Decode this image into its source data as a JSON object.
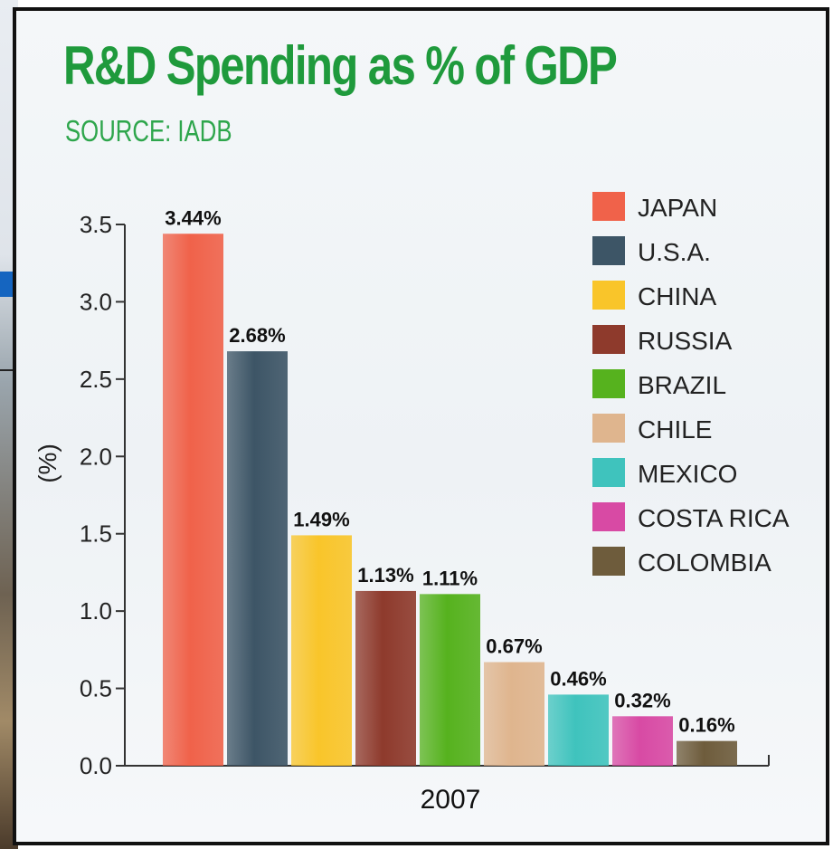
{
  "chart_data": {
    "type": "bar",
    "title": "R&D Spending as % of GDP",
    "subtitle": "SOURCE: IADB",
    "ylabel": "(%)",
    "categories": [
      "2007"
    ],
    "ylim": [
      0,
      3.5
    ],
    "yticks": [
      "0.0",
      "0.5",
      "1.0",
      "1.5",
      "2.0",
      "2.5",
      "3.0",
      "3.5"
    ],
    "legend_position": "top-right",
    "grid": false,
    "series": [
      {
        "name": "JAPAN",
        "value": 3.44,
        "label": "3.44%",
        "color": "#f0624a"
      },
      {
        "name": "U.S.A.",
        "value": 2.68,
        "label": "2.68%",
        "color": "#3d5566"
      },
      {
        "name": "CHINA",
        "value": 1.49,
        "label": "1.49%",
        "color": "#f9c52a"
      },
      {
        "name": "RUSSIA",
        "value": 1.13,
        "label": "1.13%",
        "color": "#8e3a2c"
      },
      {
        "name": "BRAZIL",
        "value": 1.11,
        "label": "1.11%",
        "color": "#56b21e"
      },
      {
        "name": "CHILE",
        "value": 0.67,
        "label": "0.67%",
        "color": "#dfb58e"
      },
      {
        "name": "MEXICO",
        "value": 0.46,
        "label": "0.46%",
        "color": "#3fc3bd"
      },
      {
        "name": "COSTA RICA",
        "value": 0.32,
        "label": "0.32%",
        "color": "#d84aa4"
      },
      {
        "name": "COLOMBIA",
        "value": 0.16,
        "label": "0.16%",
        "color": "#6e5c3c"
      }
    ]
  }
}
